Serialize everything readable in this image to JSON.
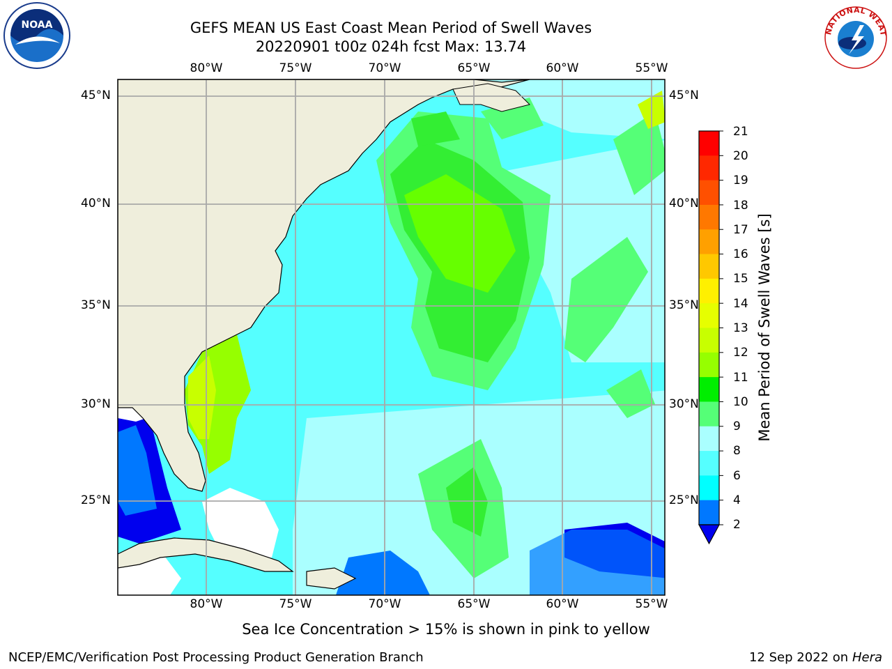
{
  "title": {
    "line1": "GEFS MEAN US East Coast Mean Period of Swell Waves",
    "line2": "20220901 t00z 024h fcst   Max: 13.74"
  },
  "map": {
    "lon_labels": [
      "80°W",
      "75°W",
      "70°W",
      "65°W",
      "60°W",
      "55°W"
    ],
    "lat_labels_left": [
      "45°N",
      "40°N",
      "35°N",
      "30°N",
      "25°N"
    ],
    "lat_labels_right": [
      "45°N",
      "40°N",
      "35°N",
      "30°N",
      "25°N"
    ],
    "lon_range": [
      -85,
      -54
    ],
    "lat_range": [
      20.5,
      45.8
    ],
    "land_color": "#efeedc",
    "grid": true
  },
  "colorbar": {
    "title": "Mean Period of Swell Waves [s]",
    "ticks": [
      "21",
      "20",
      "19",
      "18",
      "17",
      "16",
      "15",
      "14",
      "13",
      "12",
      "11",
      "10",
      "9",
      "8",
      "6",
      "4",
      "2"
    ],
    "colors": [
      "#ff0000",
      "#ff2800",
      "#ff5000",
      "#ff7800",
      "#ffa000",
      "#ffc800",
      "#fff000",
      "#e6ff00",
      "#c8ff00",
      "#96ff00",
      "#00ee00",
      "#55ff77",
      "#aaffff",
      "#55ffff",
      "#00ffff",
      "#0078ff"
    ],
    "extend_color": "#0000ee"
  },
  "logos": {
    "noaa_text": "NOAA",
    "nws_text": "NATIONAL WEATHER SERVICE"
  },
  "footer": {
    "note": "Sea Ice Concentration > 15% is shown in pink to yellow",
    "left": "NCEP/EMC/Verification Post Processing Product Generation Branch",
    "date": "12 Sep 2022 on",
    "machine": "Hera"
  }
}
